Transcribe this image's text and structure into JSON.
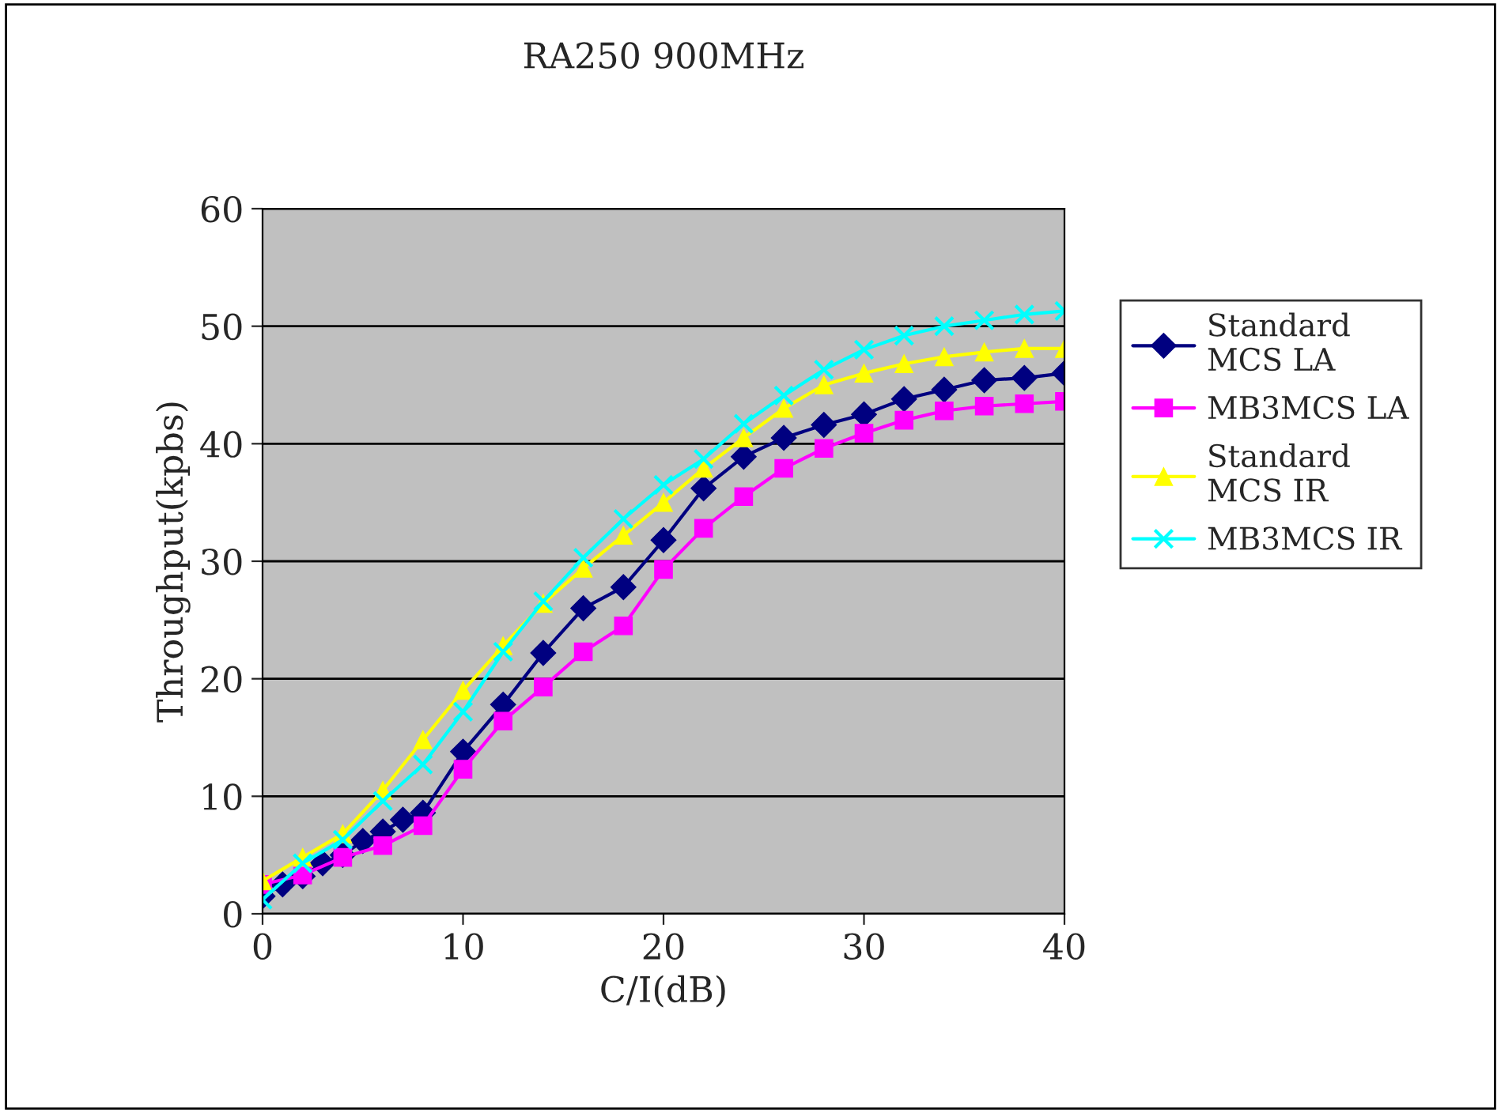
{
  "chart_data": {
    "type": "line",
    "title": "RA250 900MHz",
    "xlabel": "C/I(dB)",
    "ylabel": "Throughput(kpbs)",
    "xlim": [
      0,
      40
    ],
    "xticks": [
      0,
      10,
      20,
      30,
      40
    ],
    "ylim": [
      0,
      60
    ],
    "yticks": [
      0,
      10,
      20,
      30,
      40,
      50,
      60
    ],
    "grid": "y",
    "legend": "right",
    "series": [
      {
        "name": "Standard\nMCS LA",
        "color": "#000080",
        "marker": "diamond",
        "x": [
          0,
          1,
          2,
          3,
          4,
          5,
          6,
          7,
          8,
          10,
          12,
          14,
          16,
          18,
          20,
          22,
          24,
          26,
          28,
          30,
          32,
          34,
          36,
          38,
          40
        ],
        "values": [
          1.5,
          2.5,
          3.2,
          4.3,
          5,
          6.2,
          7,
          8,
          8.6,
          13.8,
          17.8,
          22.2,
          26,
          27.8,
          31.8,
          36.2,
          38.9,
          40.5,
          41.6,
          42.5,
          43.8,
          44.6,
          45.4,
          45.6,
          46
        ]
      },
      {
        "name": "MB3MCS LA",
        "color": "#ff00ff",
        "marker": "square",
        "x": [
          0,
          2,
          4,
          6,
          8,
          10,
          12,
          14,
          16,
          18,
          20,
          22,
          24,
          26,
          28,
          30,
          32,
          34,
          36,
          38,
          40
        ],
        "values": [
          2.5,
          3.3,
          4.8,
          5.8,
          7.5,
          12.3,
          16.4,
          19.3,
          22.3,
          24.5,
          29.3,
          32.8,
          35.5,
          37.9,
          39.6,
          40.9,
          42,
          42.8,
          43.2,
          43.4,
          43.6
        ]
      },
      {
        "name": "Standard\nMCS IR",
        "color": "#ffff00",
        "marker": "triangle",
        "x": [
          0,
          2,
          4,
          6,
          8,
          10,
          12,
          14,
          16,
          18,
          20,
          22,
          24,
          26,
          28,
          30,
          32,
          34,
          36,
          38,
          40
        ],
        "values": [
          2.8,
          4.8,
          6.8,
          10.5,
          14.8,
          19,
          22.8,
          26.4,
          29.4,
          32.2,
          35,
          37.9,
          40.5,
          43,
          45,
          46,
          46.8,
          47.4,
          47.8,
          48.1,
          48.1
        ]
      },
      {
        "name": "MB3MCS IR",
        "color": "#00ffff",
        "marker": "cross",
        "x": [
          0,
          2,
          4,
          6,
          8,
          10,
          12,
          14,
          16,
          18,
          20,
          22,
          24,
          26,
          28,
          30,
          32,
          34,
          36,
          38,
          40
        ],
        "values": [
          1.2,
          4.3,
          6.3,
          9.6,
          12.7,
          17.2,
          22.3,
          26.6,
          30.3,
          33.6,
          36.5,
          38.7,
          41.7,
          44.1,
          46.3,
          48,
          49.2,
          50,
          50.5,
          51,
          51.3
        ]
      }
    ]
  }
}
